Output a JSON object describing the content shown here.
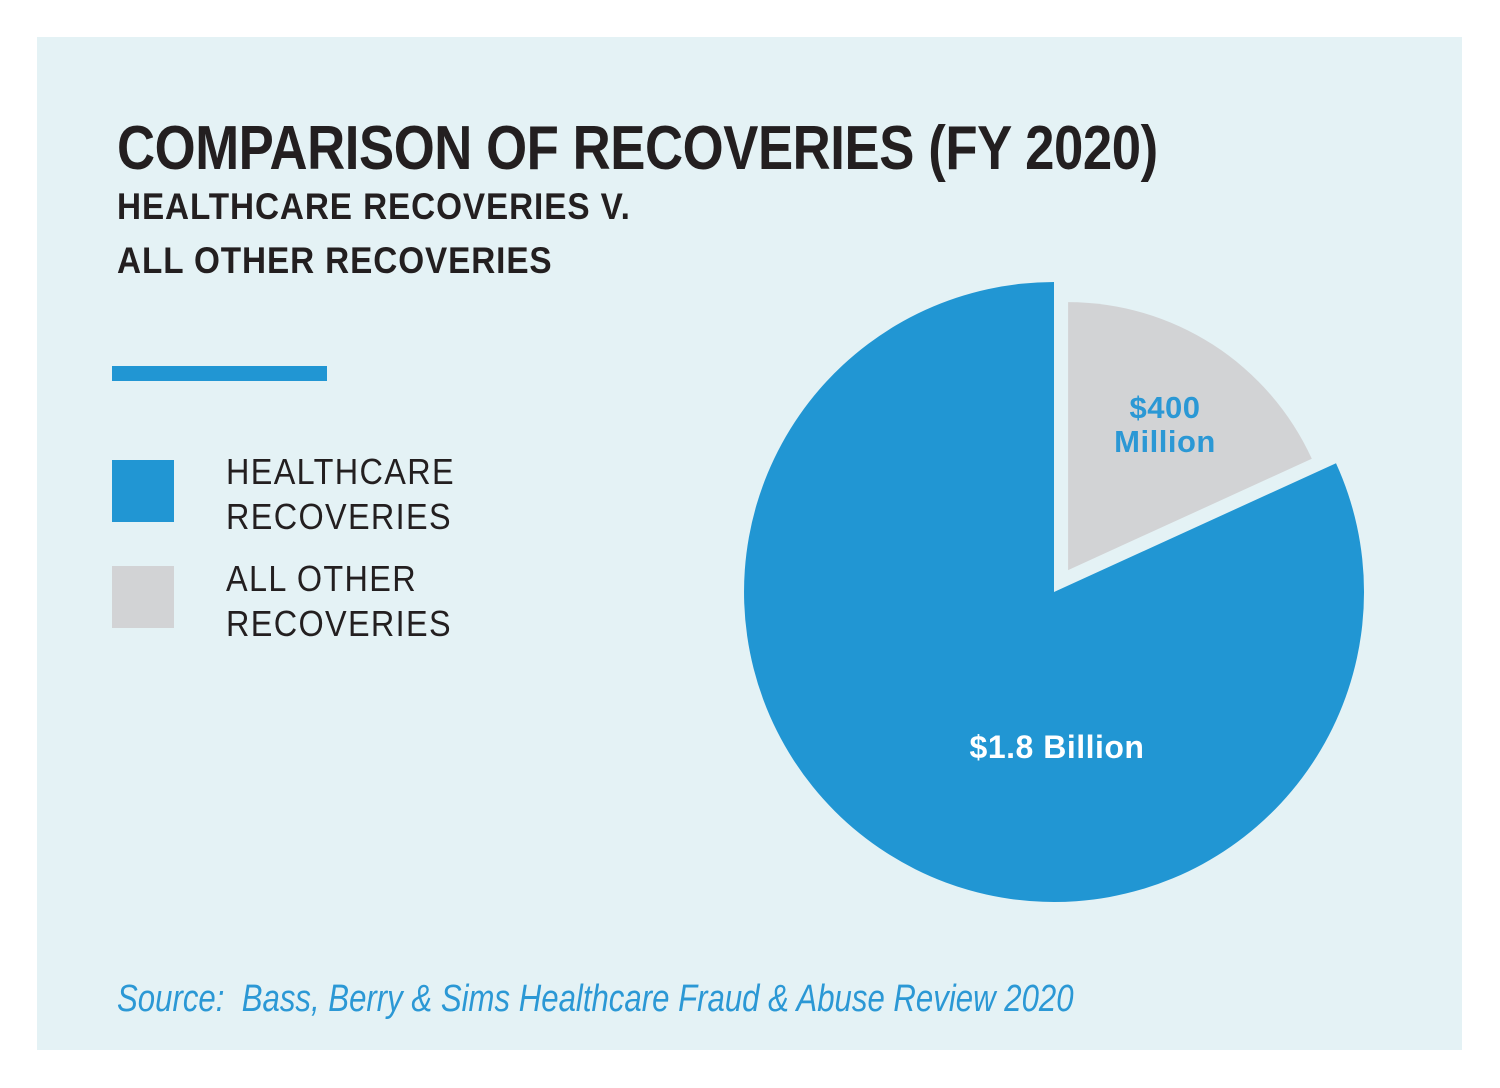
{
  "colors": {
    "page_background": "#ffffff",
    "panel_background": "#e4f2f5",
    "accent_blue": "#2196d3",
    "slice_gray": "#d2d3d5",
    "text_dark": "#231f20",
    "label_blue": "#2b98d5",
    "label_white": "#ffffff"
  },
  "header": {
    "title": "COMPARISON OF RECOVERIES (FY 2020)",
    "subtitle_lines": [
      "HEALTHCARE RECOVERIES V.",
      "ALL OTHER RECOVERIES"
    ]
  },
  "legend": {
    "items": [
      {
        "label_lines": [
          "HEALTHCARE",
          "RECOVERIES"
        ],
        "color": "#2196d3"
      },
      {
        "label_lines": [
          "ALL OTHER",
          "RECOVERIES"
        ],
        "color": "#d2d3d5"
      }
    ]
  },
  "chart_data": {
    "type": "pie",
    "title": "COMPARISON OF RECOVERIES (FY 2020)",
    "subtitle": "HEALTHCARE RECOVERIES V. ALL OTHER RECOVERIES",
    "unit": "USD millions",
    "total_millions": 2200,
    "start_angle_deg": 0,
    "legend_position": "left",
    "slices": [
      {
        "label": "HEALTHCARE RECOVERIES",
        "value_millions": 1800,
        "value_text": "$1.8 Billion",
        "value_lines": [
          "$1.8 Billion"
        ],
        "color": "#2196d3",
        "label_color": "#ffffff",
        "exploded": false
      },
      {
        "label": "ALL OTHER RECOVERIES",
        "value_millions": 400,
        "value_text": "$400 Million",
        "value_lines": [
          "$400",
          "Million"
        ],
        "color": "#d2d3d5",
        "label_color": "#2b98d5",
        "exploded": true
      }
    ]
  },
  "footer": {
    "source_text": "Source:  Bass, Berry & Sims Healthcare Fraud & Abuse Review 2020"
  }
}
